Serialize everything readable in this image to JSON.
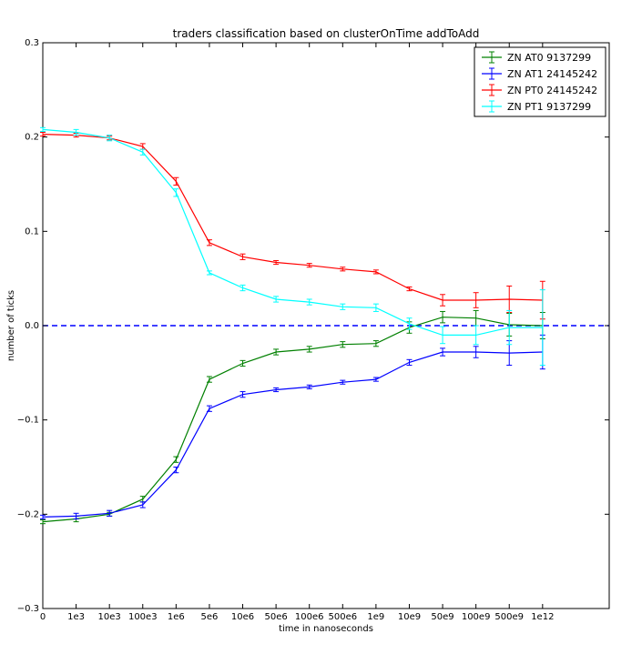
{
  "chart_data": {
    "type": "line",
    "title": "traders classification based on clusterOnTime addToAdd",
    "xlabel": "time in nanoseconds",
    "ylabel": "number of ticks",
    "categories": [
      "0",
      "1e3",
      "10e3",
      "100e3",
      "1e6",
      "5e6",
      "10e6",
      "50e6",
      "100e6",
      "500e6",
      "1e9",
      "10e9",
      "50e9",
      "100e9",
      "500e9",
      "1e12"
    ],
    "ylim": [
      -0.3,
      0.3
    ],
    "yticks": [
      "−0.3",
      "−0.2",
      "−0.1",
      "0.0",
      "0.1",
      "0.2",
      "0.3"
    ],
    "ytick_values": [
      -0.3,
      -0.2,
      -0.1,
      0.0,
      0.1,
      0.2,
      0.3
    ],
    "reference_line": {
      "y": 0.0,
      "style": "dashed",
      "color": "#0000ff"
    },
    "legend_position": "top-right",
    "grid": false,
    "series": [
      {
        "name": "ZN AT0 9137299",
        "color": "#008000",
        "values": [
          -0.208,
          -0.205,
          -0.2,
          -0.184,
          -0.142,
          -0.057,
          -0.04,
          -0.028,
          -0.025,
          -0.02,
          -0.019,
          -0.002,
          0.009,
          0.008,
          0.001,
          0.0
        ],
        "errors": [
          0.002,
          0.003,
          0.002,
          0.003,
          0.003,
          0.003,
          0.003,
          0.003,
          0.003,
          0.003,
          0.003,
          0.006,
          0.006,
          0.008,
          0.012,
          0.014
        ]
      },
      {
        "name": "ZN AT1 24145242",
        "color": "#0000ff",
        "values": [
          -0.203,
          -0.202,
          -0.199,
          -0.19,
          -0.153,
          -0.088,
          -0.073,
          -0.068,
          -0.065,
          -0.06,
          -0.057,
          -0.039,
          -0.028,
          -0.028,
          -0.029,
          -0.028
        ],
        "errors": [
          0.002,
          0.003,
          0.003,
          0.003,
          0.003,
          0.003,
          0.003,
          0.002,
          0.002,
          0.002,
          0.002,
          0.003,
          0.004,
          0.006,
          0.013,
          0.018
        ]
      },
      {
        "name": "ZN PT0 24145242",
        "color": "#ff0000",
        "values": [
          0.203,
          0.202,
          0.199,
          0.19,
          0.153,
          0.088,
          0.073,
          0.067,
          0.064,
          0.06,
          0.057,
          0.039,
          0.027,
          0.027,
          0.028,
          0.027
        ],
        "errors": [
          0.002,
          0.002,
          0.002,
          0.003,
          0.004,
          0.003,
          0.003,
          0.002,
          0.002,
          0.002,
          0.002,
          0.002,
          0.006,
          0.008,
          0.014,
          0.02
        ]
      },
      {
        "name": "ZN PT1 9137299",
        "color": "#00ffff",
        "values": [
          0.208,
          0.205,
          0.199,
          0.184,
          0.141,
          0.056,
          0.04,
          0.028,
          0.025,
          0.02,
          0.019,
          0.002,
          -0.01,
          -0.01,
          -0.002,
          -0.002
        ],
        "errors": [
          0.002,
          0.003,
          0.003,
          0.003,
          0.004,
          0.002,
          0.003,
          0.003,
          0.003,
          0.003,
          0.004,
          0.006,
          0.009,
          0.01,
          0.018,
          0.04
        ]
      }
    ]
  }
}
